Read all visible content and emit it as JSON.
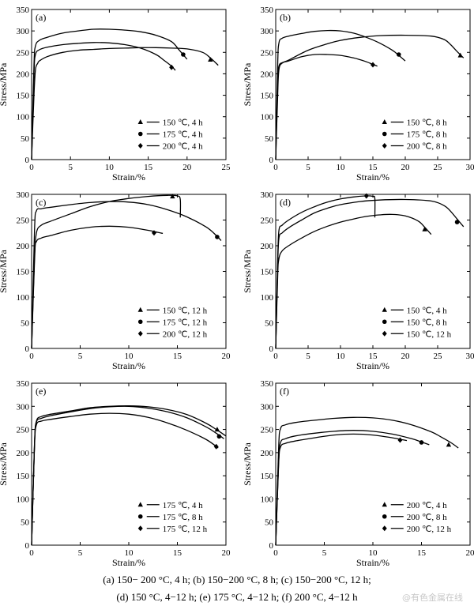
{
  "chart_data": [
    {
      "id": "a",
      "type": "line",
      "panel_label": "(a)",
      "xlabel": "Strain/%",
      "ylabel": "Stress/MPa",
      "xlim": [
        0,
        25
      ],
      "ylim": [
        0,
        350
      ],
      "xticks": [
        0,
        5,
        10,
        15,
        20,
        25
      ],
      "yticks": [
        0,
        50,
        100,
        150,
        200,
        250,
        300,
        350
      ],
      "legend_position": "bottom-right",
      "series": [
        {
          "name": "150 ℃, 4 h",
          "marker": "triangle",
          "x": [
            0,
            0.3,
            0.5,
            0.8,
            1,
            2,
            4,
            6,
            8,
            10,
            12,
            14,
            16,
            18,
            20,
            22,
            23,
            24
          ],
          "y": [
            0,
            150,
            210,
            225,
            230,
            240,
            250,
            255,
            257,
            259,
            260,
            261,
            261,
            260,
            258,
            250,
            237,
            220
          ],
          "end_marker": [
            23,
            233
          ]
        },
        {
          "name": "175 ℃, 4 h",
          "marker": "circle",
          "x": [
            0,
            0.3,
            0.5,
            1,
            2,
            4,
            6,
            8,
            10,
            12,
            14,
            16,
            18,
            19,
            20
          ],
          "y": [
            0,
            220,
            265,
            278,
            285,
            295,
            300,
            304,
            304,
            302,
            298,
            290,
            275,
            255,
            234
          ],
          "end_marker": [
            19.5,
            245
          ]
        },
        {
          "name": "200 ℃, 4 h",
          "marker": "diamond",
          "x": [
            0,
            0.3,
            0.5,
            1,
            2,
            4,
            6,
            8,
            10,
            12,
            14,
            16,
            17,
            18,
            18.5
          ],
          "y": [
            0,
            200,
            245,
            256,
            262,
            268,
            271,
            273,
            272,
            268,
            260,
            245,
            232,
            218,
            208
          ],
          "end_marker": [
            18,
            215
          ]
        }
      ]
    },
    {
      "id": "b",
      "type": "line",
      "panel_label": "(b)",
      "xlabel": "Strain/%",
      "ylabel": "Stress/MPa",
      "xlim": [
        0,
        30
      ],
      "ylim": [
        0,
        350
      ],
      "xticks": [
        0,
        5,
        10,
        15,
        20,
        25,
        30
      ],
      "yticks": [
        0,
        50,
        100,
        150,
        200,
        250,
        300,
        350
      ],
      "legend_position": "bottom-right",
      "series": [
        {
          "name": "150 ℃, 8 h",
          "marker": "triangle",
          "x": [
            0,
            0.3,
            0.5,
            1,
            2,
            5,
            8,
            10,
            13,
            16,
            20,
            24,
            26,
            27,
            28,
            29
          ],
          "y": [
            0,
            150,
            210,
            225,
            232,
            255,
            270,
            278,
            285,
            289,
            290,
            288,
            280,
            268,
            252,
            237
          ],
          "end_marker": [
            28.5,
            243
          ]
        },
        {
          "name": "175 ℃, 8 h",
          "marker": "circle",
          "x": [
            0,
            0.3,
            0.5,
            1,
            2,
            4,
            6,
            8,
            10,
            12,
            14,
            16,
            18,
            19,
            20
          ],
          "y": [
            0,
            220,
            272,
            283,
            288,
            294,
            299,
            301,
            300,
            295,
            285,
            272,
            255,
            243,
            230
          ],
          "end_marker": [
            19,
            245
          ]
        },
        {
          "name": "200 ℃, 8 h",
          "marker": "diamond",
          "x": [
            0,
            0.3,
            0.5,
            1,
            2,
            4,
            6,
            8,
            10,
            12,
            13,
            14,
            15,
            15.7
          ],
          "y": [
            0,
            180,
            218,
            226,
            230,
            240,
            245,
            245,
            243,
            237,
            233,
            228,
            222,
            218
          ],
          "end_marker": [
            15,
            221
          ]
        }
      ]
    },
    {
      "id": "c",
      "type": "line",
      "panel_label": "(c)",
      "xlabel": "Strain/%",
      "ylabel": "Stress/MPa",
      "xlim": [
        0,
        20
      ],
      "ylim": [
        0,
        300
      ],
      "xticks": [
        0,
        5,
        10,
        15,
        20
      ],
      "yticks": [
        0,
        50,
        100,
        150,
        200,
        250,
        300
      ],
      "legend_position": "bottom-right",
      "series": [
        {
          "name": "150 ℃, 12 h",
          "marker": "triangle",
          "x": [
            0,
            0.3,
            0.5,
            1,
            2,
            4,
            6,
            8,
            10,
            12,
            14,
            15,
            15.3,
            15.3
          ],
          "y": [
            0,
            170,
            225,
            240,
            248,
            262,
            276,
            286,
            292,
            296,
            298,
            297,
            290,
            255
          ],
          "end_marker": [
            14.5,
            296
          ]
        },
        {
          "name": "175 ℃, 12 h",
          "marker": "circle",
          "x": [
            0,
            0.3,
            0.5,
            1,
            2,
            4,
            6,
            8,
            10,
            12,
            14,
            16,
            18,
            19,
            19.5
          ],
          "y": [
            0,
            230,
            268,
            272,
            275,
            280,
            284,
            286,
            285,
            280,
            270,
            256,
            236,
            220,
            210
          ],
          "end_marker": [
            19.1,
            217
          ]
        },
        {
          "name": "200 ℃, 12 h",
          "marker": "diamond",
          "x": [
            0,
            0.3,
            0.5,
            1,
            2,
            4,
            6,
            8,
            10,
            12,
            13,
            13.5
          ],
          "y": [
            0,
            180,
            208,
            215,
            220,
            230,
            236,
            238,
            236,
            230,
            226,
            224
          ],
          "end_marker": [
            12.6,
            225
          ]
        }
      ]
    },
    {
      "id": "d",
      "type": "line",
      "panel_label": "(d)",
      "xlabel": "Strain/%",
      "ylabel": "Stress/MPa",
      "xlim": [
        0,
        30
      ],
      "ylim": [
        0,
        300
      ],
      "xticks": [
        0,
        5,
        10,
        15,
        20,
        25,
        30
      ],
      "yticks": [
        0,
        50,
        100,
        150,
        200,
        250,
        300
      ],
      "legend_position": "bottom-right",
      "series": [
        {
          "name": "150 ℃, 4 h",
          "marker": "triangle",
          "x": [
            0,
            0.3,
            0.5,
            1,
            2,
            4,
            6,
            8,
            10,
            12,
            14,
            16,
            18,
            20,
            22,
            23,
            24
          ],
          "y": [
            0,
            140,
            175,
            190,
            200,
            215,
            228,
            238,
            246,
            252,
            257,
            260,
            261,
            258,
            248,
            236,
            222
          ],
          "end_marker": [
            23,
            232
          ]
        },
        {
          "name": "150 ℃, 8 h",
          "marker": "circle",
          "x": [
            0,
            0.3,
            0.5,
            1,
            2,
            4,
            6,
            8,
            10,
            13,
            16,
            20,
            24,
            26,
            27,
            28,
            29
          ],
          "y": [
            0,
            160,
            215,
            225,
            235,
            250,
            264,
            273,
            280,
            286,
            289,
            290,
            287,
            278,
            267,
            252,
            237
          ],
          "end_marker": [
            28,
            246
          ]
        },
        {
          "name": "150 ℃, 12 h",
          "marker": "diamond",
          "x": [
            0,
            0.3,
            0.5,
            1,
            2,
            4,
            6,
            8,
            10,
            12,
            14,
            15,
            15.3,
            15.3
          ],
          "y": [
            0,
            170,
            230,
            240,
            250,
            265,
            276,
            285,
            291,
            295,
            297,
            296,
            292,
            255
          ],
          "end_marker": [
            14,
            297
          ]
        }
      ]
    },
    {
      "id": "e",
      "type": "line",
      "panel_label": "(e)",
      "xlabel": "Strain/%",
      "ylabel": "Stress/MPa",
      "xlim": [
        0,
        20
      ],
      "ylim": [
        0,
        350
      ],
      "xticks": [
        0,
        5,
        10,
        15,
        20
      ],
      "yticks": [
        0,
        50,
        100,
        150,
        200,
        250,
        300,
        350
      ],
      "legend_position": "bottom-right",
      "series": [
        {
          "name": "175 ℃, 4 h",
          "marker": "triangle",
          "x": [
            0,
            0.3,
            0.5,
            1,
            2,
            4,
            6,
            8,
            10,
            12,
            14,
            16,
            18,
            19,
            20
          ],
          "y": [
            0,
            220,
            268,
            278,
            283,
            290,
            297,
            300,
            301,
            299,
            293,
            282,
            263,
            250,
            236
          ],
          "end_marker": [
            19.1,
            250
          ]
        },
        {
          "name": "175 ℃, 8 h",
          "marker": "circle",
          "x": [
            0,
            0.3,
            0.5,
            1,
            2,
            4,
            6,
            8,
            10,
            12,
            14,
            16,
            18,
            19,
            19.8
          ],
          "y": [
            0,
            220,
            266,
            274,
            280,
            288,
            295,
            299,
            300,
            296,
            288,
            275,
            255,
            242,
            230
          ],
          "end_marker": [
            19.3,
            235
          ]
        },
        {
          "name": "175 ℃, 12 h",
          "marker": "diamond",
          "x": [
            0,
            0.3,
            0.5,
            1,
            2,
            4,
            6,
            8,
            10,
            12,
            14,
            16,
            18,
            19.2
          ],
          "y": [
            0,
            215,
            260,
            268,
            272,
            278,
            283,
            285,
            283,
            276,
            264,
            248,
            228,
            210
          ],
          "end_marker": [
            19,
            213
          ]
        }
      ]
    },
    {
      "id": "f",
      "type": "line",
      "panel_label": "(f)",
      "xlabel": "Strain/%",
      "ylabel": "Stress/MPa",
      "xlim": [
        0,
        20
      ],
      "ylim": [
        0,
        350
      ],
      "xticks": [
        0,
        5,
        10,
        15,
        20
      ],
      "yticks": [
        0,
        50,
        100,
        150,
        200,
        250,
        300,
        350
      ],
      "legend_position": "bottom-right",
      "series": [
        {
          "name": "200 ℃, 4 h",
          "marker": "triangle",
          "x": [
            0,
            0.3,
            0.5,
            1,
            2,
            4,
            6,
            8,
            10,
            12,
            14,
            16,
            17,
            18,
            18.8
          ],
          "y": [
            0,
            210,
            252,
            260,
            265,
            270,
            274,
            276,
            275,
            270,
            260,
            245,
            234,
            222,
            210
          ],
          "end_marker": [
            17.8,
            217
          ]
        },
        {
          "name": "200 ℃, 8 h",
          "marker": "circle",
          "x": [
            0,
            0.3,
            0.5,
            1,
            2,
            4,
            6,
            8,
            10,
            12,
            14,
            15,
            15.8
          ],
          "y": [
            0,
            180,
            222,
            230,
            236,
            242,
            246,
            248,
            246,
            240,
            230,
            223,
            217
          ],
          "end_marker": [
            15,
            222
          ]
        },
        {
          "name": "200 ℃, 12 h",
          "marker": "diamond",
          "x": [
            0,
            0.3,
            0.5,
            1,
            2,
            4,
            6,
            8,
            10,
            12,
            13,
            13.5
          ],
          "y": [
            0,
            175,
            212,
            220,
            225,
            232,
            238,
            240,
            238,
            232,
            228,
            226
          ],
          "end_marker": [
            12.8,
            227
          ]
        }
      ]
    }
  ],
  "caption": {
    "line1": "(a) 150− 200 °C, 4 h; (b) 150−200 °C, 8 h; (c) 150−200 °C, 12 h;",
    "line2": "(d) 150 °C, 4−12 h; (e) 175 °C, 4−12 h; (f) 200 °C, 4−12 h"
  },
  "watermark": "@有色金属在线"
}
